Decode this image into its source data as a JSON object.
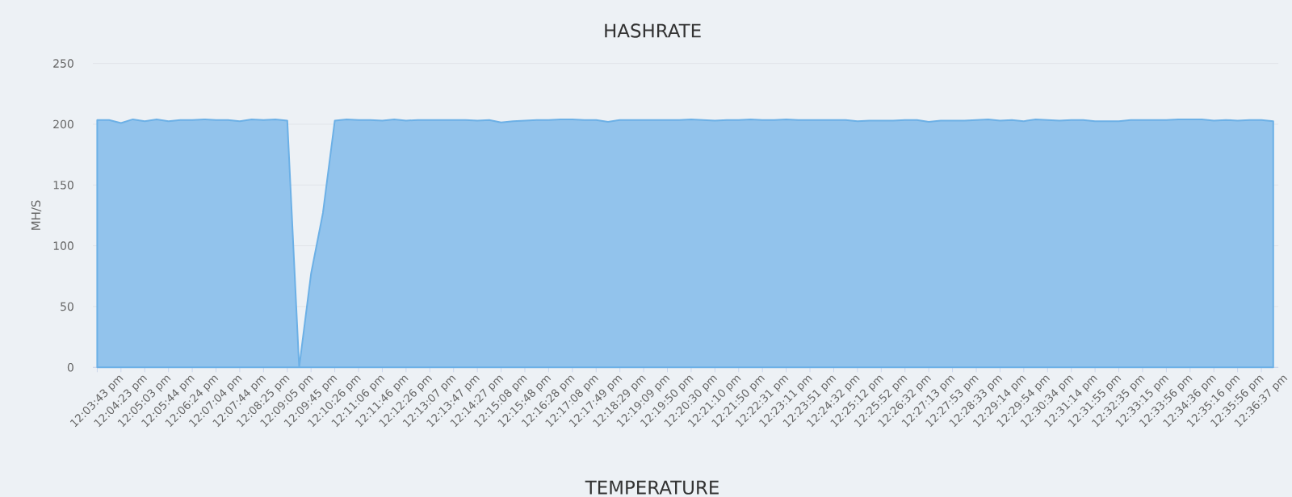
{
  "chart_data": {
    "type": "area",
    "title": "HASHRATE",
    "ylabel": "MH/S",
    "categories": [
      "12:03:43 pm",
      null,
      "12:04:23 pm",
      null,
      "12:05:03 pm",
      null,
      "12:05:44 pm",
      null,
      "12:06:24 pm",
      null,
      "12:07:04 pm",
      null,
      "12:07:44 pm",
      null,
      "12:08:25 pm",
      null,
      "12:09:05 pm",
      null,
      "12:09:45 pm",
      null,
      "12:10:26 pm",
      null,
      "12:11:06 pm",
      null,
      "12:11:46 pm",
      null,
      "12:12:26 pm",
      null,
      "12:13:07 pm",
      null,
      "12:13:47 pm",
      null,
      "12:14:27 pm",
      null,
      "12:15:08 pm",
      null,
      "12:15:48 pm",
      null,
      "12:16:28 pm",
      null,
      "12:17:08 pm",
      null,
      "12:17:49 pm",
      null,
      "12:18:29 pm",
      null,
      "12:19:09 pm",
      null,
      "12:19:50 pm",
      null,
      "12:20:30 pm",
      null,
      "12:21:10 pm",
      null,
      "12:21:50 pm",
      null,
      "12:22:31 pm",
      null,
      "12:23:11 pm",
      null,
      "12:23:51 pm",
      null,
      "12:24:32 pm",
      null,
      "12:25:12 pm",
      null,
      "12:25:52 pm",
      null,
      "12:26:32 pm",
      null,
      "12:27:13 pm",
      null,
      "12:27:53 pm",
      null,
      "12:28:33 pm",
      null,
      "12:29:14 pm",
      null,
      "12:29:54 pm",
      null,
      "12:30:34 pm",
      null,
      "12:31:14 pm",
      null,
      "12:31:55 pm",
      null,
      "12:32:35 pm",
      null,
      "12:33:15 pm",
      null,
      "12:33:56 pm",
      null,
      "12:34:36 pm",
      null,
      "12:35:16 pm",
      null,
      "12:35:56 pm",
      null,
      "12:36:37 pm",
      null
    ],
    "series": [
      {
        "color": "#92c3ec",
        "values": [
          203.5,
          203.5,
          201,
          204,
          202.5,
          204,
          202.5,
          203.5,
          203.5,
          204,
          203.5,
          203.5,
          202.5,
          204,
          203.5,
          204,
          203,
          0,
          77,
          127,
          203,
          204,
          203.5,
          203.5,
          203,
          204,
          203,
          203.5,
          203.5,
          203.5,
          203.5,
          203.5,
          203,
          203.5,
          201.5,
          202.5,
          203,
          203.5,
          203.5,
          204,
          204,
          203.5,
          203.5,
          202,
          203.5,
          203.5,
          203.5,
          203.5,
          203.5,
          203.5,
          204,
          203.5,
          203,
          203.5,
          203.5,
          204,
          203.5,
          203.5,
          204,
          203.5,
          203.5,
          203.5,
          203.5,
          203.5,
          202.5,
          203,
          203,
          203,
          203.5,
          203.5,
          202,
          203,
          203,
          203,
          203.5,
          204,
          203,
          203.5,
          202.5,
          204,
          203.5,
          203,
          203.5,
          203.5,
          202.5,
          202.5,
          202.5,
          203.5,
          203.5,
          203.5,
          203.5,
          204,
          204,
          204,
          203,
          203.5,
          203,
          203.5,
          203.5,
          202.5
        ]
      }
    ],
    "ylim": [
      0,
      250
    ],
    "yticks": [
      0,
      50,
      100,
      150,
      200,
      250
    ],
    "grid": "y",
    "annotations": [
      "TEMPERATURE"
    ]
  }
}
